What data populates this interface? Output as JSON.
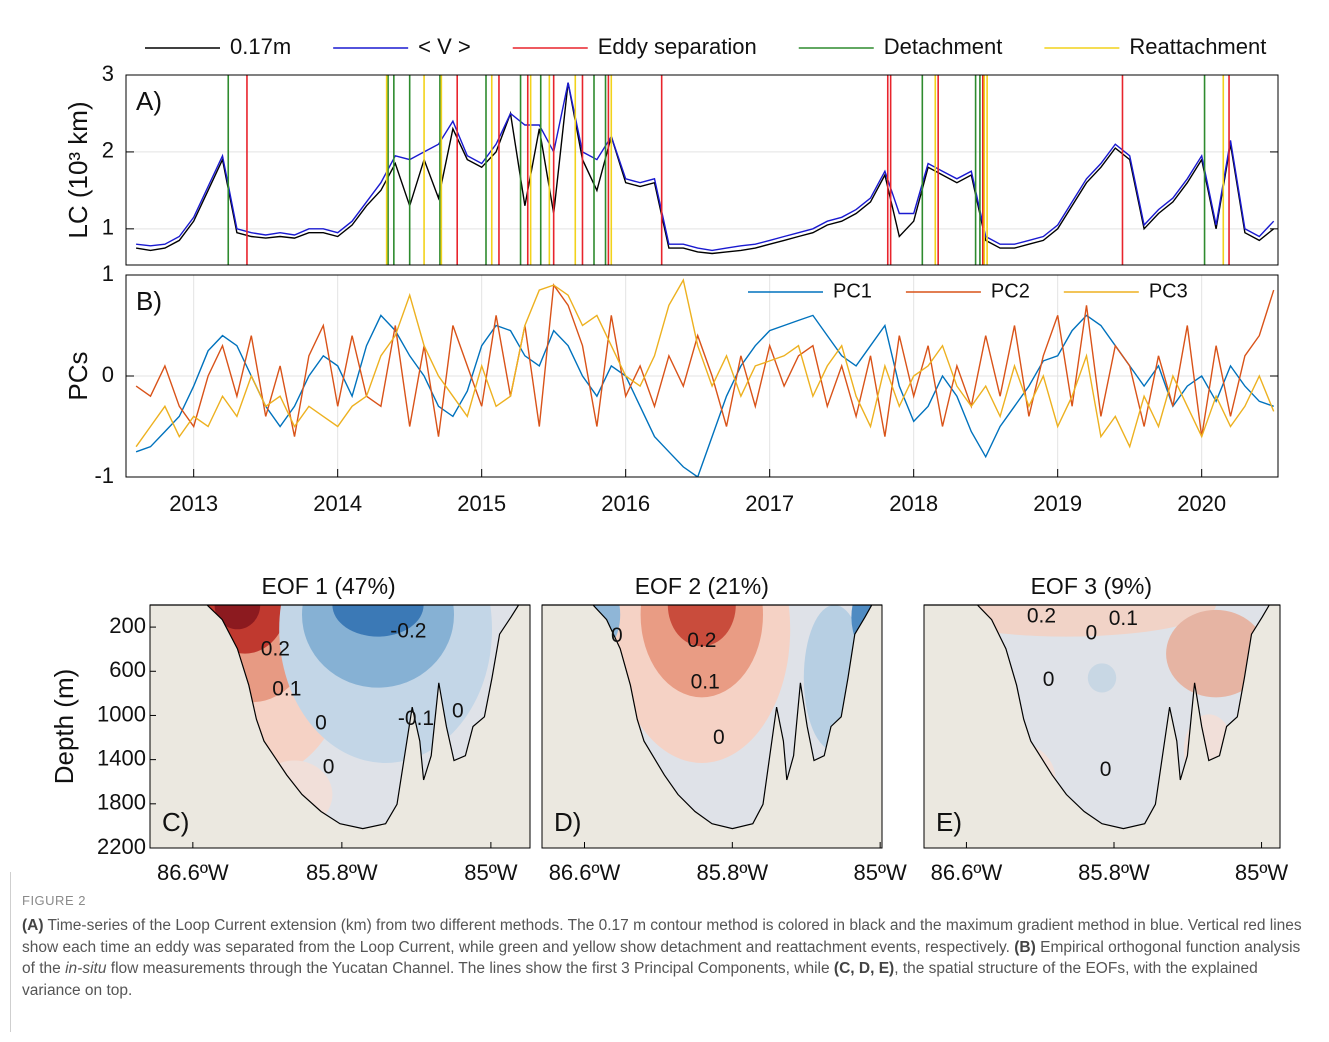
{
  "chart_data": [
    {
      "type": "line",
      "panel_label": "A)",
      "ylabel": "LC (10³ km)",
      "x": [
        2012.6,
        2012.7,
        2012.8,
        2012.9,
        2013.0,
        2013.1,
        2013.2,
        2013.3,
        2013.4,
        2013.5,
        2013.6,
        2013.7,
        2013.8,
        2013.9,
        2014.0,
        2014.1,
        2014.2,
        2014.3,
        2014.4,
        2014.5,
        2014.6,
        2014.7,
        2014.8,
        2014.9,
        2015.0,
        2015.1,
        2015.2,
        2015.3,
        2015.4,
        2015.5,
        2015.6,
        2015.7,
        2015.8,
        2015.9,
        2016.0,
        2016.1,
        2016.2,
        2016.3,
        2016.4,
        2016.5,
        2016.6,
        2016.7,
        2016.8,
        2016.9,
        2017.0,
        2017.1,
        2017.2,
        2017.3,
        2017.4,
        2017.5,
        2017.6,
        2017.7,
        2017.8,
        2017.9,
        2018.0,
        2018.1,
        2018.2,
        2018.3,
        2018.4,
        2018.5,
        2018.6,
        2018.7,
        2018.8,
        2018.9,
        2019.0,
        2019.1,
        2019.2,
        2019.3,
        2019.4,
        2019.5,
        2019.6,
        2019.7,
        2019.8,
        2019.9,
        2020.0,
        2020.1,
        2020.2,
        2020.3,
        2020.4,
        2020.5
      ],
      "xlim": [
        2012.53,
        2020.53
      ],
      "ylim": [
        0.53,
        3
      ],
      "yticks": [
        1,
        2,
        3
      ],
      "grid": true,
      "legend": "top-outside",
      "series": [
        {
          "name": "0.17m",
          "color": "#000000",
          "values": [
            0.75,
            0.72,
            0.75,
            0.85,
            1.1,
            1.5,
            1.9,
            0.95,
            0.9,
            0.88,
            0.9,
            0.88,
            0.95,
            0.95,
            0.9,
            1.05,
            1.3,
            1.5,
            1.85,
            1.3,
            1.9,
            1.4,
            2.3,
            1.9,
            1.8,
            2.0,
            2.5,
            1.3,
            2.3,
            1.2,
            2.9,
            1.9,
            1.5,
            2.2,
            1.6,
            1.55,
            1.6,
            0.75,
            0.75,
            0.7,
            0.68,
            0.7,
            0.72,
            0.75,
            0.8,
            0.85,
            0.9,
            0.95,
            1.05,
            1.1,
            1.2,
            1.35,
            1.7,
            0.9,
            1.1,
            1.8,
            1.7,
            1.6,
            1.7,
            0.85,
            0.75,
            0.75,
            0.8,
            0.85,
            1.0,
            1.3,
            1.6,
            1.8,
            2.05,
            1.9,
            1.0,
            1.2,
            1.35,
            1.6,
            1.9,
            1.0,
            2.1,
            0.95,
            0.85,
            1.0
          ]
        },
        {
          "name": "< V >",
          "color": "#1a1ad0",
          "values": [
            0.8,
            0.78,
            0.8,
            0.9,
            1.15,
            1.55,
            1.95,
            1.0,
            0.95,
            0.92,
            0.95,
            0.92,
            1.0,
            1.0,
            0.95,
            1.1,
            1.35,
            1.6,
            1.95,
            1.9,
            2.0,
            2.1,
            2.4,
            1.95,
            1.85,
            2.1,
            2.5,
            2.35,
            2.35,
            2.0,
            2.9,
            2.0,
            1.9,
            2.2,
            1.65,
            1.6,
            1.65,
            0.8,
            0.8,
            0.75,
            0.72,
            0.75,
            0.78,
            0.8,
            0.85,
            0.9,
            0.95,
            1.0,
            1.1,
            1.15,
            1.25,
            1.4,
            1.75,
            1.2,
            1.2,
            1.85,
            1.75,
            1.65,
            1.75,
            0.9,
            0.8,
            0.8,
            0.85,
            0.9,
            1.05,
            1.35,
            1.65,
            1.85,
            2.1,
            1.95,
            1.05,
            1.25,
            1.4,
            1.65,
            1.95,
            1.05,
            2.15,
            1.0,
            0.9,
            1.1
          ]
        }
      ],
      "events": [
        {
          "name": "Eddy separation",
          "color": "#e8242c",
          "x": [
            2013.37,
            2014.83,
            2015.12,
            2015.32,
            2015.5,
            2015.7,
            2015.88,
            2016.25,
            2017.82,
            2017.84,
            2018.17,
            2018.48,
            2019.45,
            2020.19
          ]
        },
        {
          "name": "Detachment",
          "color": "#2e8b2e",
          "x": [
            2013.24,
            2014.35,
            2014.39,
            2014.5,
            2014.71,
            2015.03,
            2015.27,
            2015.41,
            2015.78,
            2015.86,
            2018.06,
            2018.43,
            2018.46,
            2020.02
          ]
        },
        {
          "name": "Reattachment",
          "color": "#f2d21b",
          "x": [
            2014.34,
            2014.6,
            2014.72,
            2015.07,
            2015.34,
            2015.47,
            2015.65,
            2015.9,
            2018.15,
            2018.49,
            2018.51,
            2020.15
          ]
        }
      ]
    },
    {
      "type": "line",
      "panel_label": "B)",
      "ylabel": "PCs",
      "x": [
        2012.6,
        2012.7,
        2012.8,
        2012.9,
        2013.0,
        2013.1,
        2013.2,
        2013.3,
        2013.4,
        2013.5,
        2013.6,
        2013.7,
        2013.8,
        2013.9,
        2014.0,
        2014.1,
        2014.2,
        2014.3,
        2014.4,
        2014.5,
        2014.6,
        2014.7,
        2014.8,
        2014.9,
        2015.0,
        2015.1,
        2015.2,
        2015.3,
        2015.4,
        2015.5,
        2015.6,
        2015.7,
        2015.8,
        2015.9,
        2016.0,
        2016.1,
        2016.2,
        2016.3,
        2016.4,
        2016.5,
        2016.6,
        2016.7,
        2016.8,
        2016.9,
        2017.0,
        2017.1,
        2017.2,
        2017.3,
        2017.4,
        2017.5,
        2017.6,
        2017.7,
        2017.8,
        2017.9,
        2018.0,
        2018.1,
        2018.2,
        2018.3,
        2018.4,
        2018.5,
        2018.6,
        2018.7,
        2018.8,
        2018.9,
        2019.0,
        2019.1,
        2019.2,
        2019.3,
        2019.4,
        2019.5,
        2019.6,
        2019.7,
        2019.8,
        2019.9,
        2020.0,
        2020.1,
        2020.2,
        2020.3,
        2020.4,
        2020.5
      ],
      "xlim": [
        2012.53,
        2020.53
      ],
      "xticks": [
        2013,
        2014,
        2015,
        2016,
        2017,
        2018,
        2019,
        2020
      ],
      "ylim": [
        -1,
        1
      ],
      "yticks": [
        -1,
        0,
        1
      ],
      "grid": true,
      "legend": "top-right",
      "series": [
        {
          "name": "PC1",
          "color": "#0072bd",
          "values": [
            -0.75,
            -0.7,
            -0.55,
            -0.4,
            -0.1,
            0.25,
            0.4,
            0.3,
            0.0,
            -0.3,
            -0.5,
            -0.3,
            0.0,
            0.2,
            0.1,
            -0.2,
            0.3,
            0.6,
            0.45,
            0.2,
            0.0,
            -0.3,
            -0.4,
            -0.15,
            0.3,
            0.5,
            0.45,
            0.2,
            0.1,
            0.45,
            0.3,
            0.0,
            -0.2,
            0.1,
            0.0,
            -0.3,
            -0.6,
            -0.75,
            -0.9,
            -1.0,
            -0.6,
            -0.2,
            0.1,
            0.3,
            0.45,
            0.5,
            0.55,
            0.6,
            0.4,
            0.2,
            0.1,
            0.3,
            0.5,
            -0.1,
            -0.45,
            -0.3,
            0.0,
            -0.2,
            -0.55,
            -0.8,
            -0.5,
            -0.3,
            -0.1,
            0.15,
            0.2,
            0.45,
            0.6,
            0.5,
            0.3,
            0.1,
            -0.1,
            0.1,
            -0.3,
            -0.1,
            0.0,
            -0.25,
            0.1,
            -0.1,
            -0.25,
            -0.3
          ]
        },
        {
          "name": "PC2",
          "color": "#d95319",
          "values": [
            -0.1,
            -0.2,
            0.1,
            -0.3,
            -0.5,
            0.0,
            0.3,
            -0.2,
            0.4,
            -0.4,
            0.1,
            -0.6,
            0.2,
            0.5,
            -0.3,
            0.4,
            -0.2,
            -0.3,
            0.5,
            -0.5,
            0.3,
            -0.6,
            0.5,
            0.1,
            -0.3,
            0.6,
            -0.2,
            0.5,
            -0.5,
            0.9,
            0.7,
            0.3,
            -0.5,
            0.6,
            -0.2,
            0.1,
            -0.3,
            0.2,
            -0.1,
            0.4,
            0.0,
            -0.5,
            0.2,
            -0.3,
            0.3,
            -0.1,
            0.2,
            0.3,
            -0.3,
            0.1,
            -0.4,
            0.2,
            -0.6,
            0.4,
            -0.2,
            0.3,
            -0.5,
            0.1,
            -0.3,
            0.4,
            -0.2,
            0.5,
            -0.4,
            0.2,
            0.6,
            -0.3,
            0.7,
            -0.4,
            0.3,
            0.1,
            -0.5,
            0.2,
            -0.3,
            0.5,
            -0.6,
            0.3,
            -0.4,
            0.2,
            0.4,
            0.85
          ]
        },
        {
          "name": "PC3",
          "color": "#edb120",
          "values": [
            -0.7,
            -0.5,
            -0.3,
            -0.6,
            -0.4,
            -0.5,
            -0.2,
            -0.4,
            0.0,
            -0.3,
            -0.2,
            -0.5,
            -0.3,
            -0.4,
            -0.5,
            -0.3,
            -0.2,
            0.2,
            0.4,
            0.8,
            0.3,
            0.0,
            -0.2,
            -0.4,
            0.1,
            -0.3,
            -0.2,
            0.5,
            0.85,
            0.9,
            0.8,
            0.5,
            0.6,
            0.3,
            0.0,
            -0.1,
            0.2,
            0.7,
            0.95,
            0.3,
            -0.1,
            0.2,
            -0.2,
            0.1,
            0.15,
            0.2,
            0.3,
            -0.2,
            0.1,
            0.3,
            -0.2,
            -0.5,
            0.1,
            -0.3,
            0.0,
            0.1,
            0.3,
            -0.1,
            -0.3,
            -0.1,
            -0.4,
            0.1,
            -0.3,
            0.0,
            -0.5,
            -0.2,
            0.2,
            -0.6,
            -0.4,
            -0.7,
            -0.2,
            -0.5,
            0.0,
            -0.3,
            -0.6,
            -0.2,
            -0.5,
            -0.3,
            0.0,
            -0.35
          ]
        }
      ]
    },
    {
      "type": "contour",
      "title": "EOF 1 (47%)",
      "panel_label": "C)",
      "ylabel": "Depth (m)",
      "xlim": [
        -86.83,
        -84.79
      ],
      "xticks": [
        {
          "value": -86.6,
          "label": "86.6ºW"
        },
        {
          "value": -85.8,
          "label": "85.8ºW"
        },
        {
          "value": -85,
          "label": "85ºW"
        }
      ],
      "ylim": [
        0,
        2200
      ],
      "yticks": [
        200,
        600,
        1000,
        1400,
        1800,
        2200
      ],
      "contour_labels": [
        "0.2",
        "0.1",
        "0",
        "0",
        "-0.2",
        "-0.1",
        "0"
      ]
    },
    {
      "type": "contour",
      "title": "EOF 2 (21%)",
      "panel_label": "D)",
      "xlim": [
        -86.83,
        -84.99
      ],
      "xticks": [
        {
          "value": -86.6,
          "label": "86.6ºW"
        },
        {
          "value": -85.8,
          "label": "85.8ºW"
        },
        {
          "value": -85,
          "label": "85ºW"
        }
      ],
      "ylim": [
        0,
        2200
      ],
      "contour_labels": [
        "0",
        "0.2",
        "0.1",
        "0"
      ]
    },
    {
      "type": "contour",
      "title": "EOF 3 (9%)",
      "panel_label": "E)",
      "xlim": [
        -86.83,
        -84.9
      ],
      "xticks": [
        {
          "value": -86.6,
          "label": "86.6ºW"
        },
        {
          "value": -85.8,
          "label": "85.8ºW"
        },
        {
          "value": -85,
          "label": "85ºW"
        }
      ],
      "ylim": [
        0,
        2200
      ],
      "contour_labels": [
        "0.2",
        "0.1",
        "0",
        "0",
        "0"
      ]
    }
  ],
  "caption": {
    "label": "FIGURE 2",
    "parts": [
      "(A)",
      " Time-series of the Loop Current extension (km) from two different methods. The 0.17 m contour method is colored in black and the maximum gradient method in blue. Vertical red lines show each time an eddy was separated from the Loop Current, while green and yellow show detachment and reattachment events, respectively. ",
      "(B)",
      " Empirical orthogonal function analysis of the ",
      "in-situ",
      " flow measurements through the Yucatan Channel. The lines show the first 3 Principal Components, while ",
      "(C, D, E)",
      ", the spatial structure of the EOFs, with the explained variance on top."
    ]
  }
}
